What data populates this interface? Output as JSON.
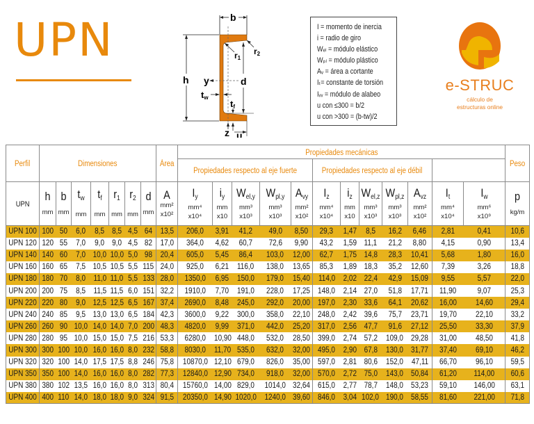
{
  "header": {
    "title": "UPN"
  },
  "diagram": {
    "labels": {
      "b": "b",
      "h": "h",
      "r1": "r",
      "r1_sub": "1",
      "r2": "r",
      "r2_sub": "2",
      "y": "y",
      "d": "d",
      "tw": "t",
      "tw_sub": "w",
      "tf": "t",
      "tf_sub": "f",
      "z": "z",
      "u": "u"
    },
    "colors": {
      "section": "#e07a10",
      "lines": "#222222"
    }
  },
  "legend": {
    "lines": [
      "I = momento de inercia",
      "i = radio de giro",
      "Wₑₗ = módulo elástico",
      "Wₚₗ = módulo plástico",
      "Aᵥ = área a cortante",
      "Iₜ= constante de torsión",
      "Iᵥᵥ = módulo de alabeo",
      "u con ≤300 = b/2",
      "u con >300 = (b-tw)/2"
    ]
  },
  "logo": {
    "name": "e-STRUC",
    "subtitle_line1": "cálculo de",
    "subtitle_line2": "estructuras online",
    "colors": {
      "dark": "#e8740f",
      "light": "#f0b400"
    }
  },
  "table": {
    "groups": {
      "perfil": "Perfil",
      "dimensiones": "Dimensiones",
      "area": "Área",
      "propiedades": "Propiedades mecánicas",
      "eje_fuerte": "Propiedades respecto al eje fuerte",
      "eje_debil": "Propiedades respecto al eje débil",
      "peso": "Peso"
    },
    "series_label": "UPN",
    "columns": [
      {
        "sym": "h",
        "sub": "",
        "unit": "mm",
        "scale": ""
      },
      {
        "sym": "b",
        "sub": "",
        "unit": "mm",
        "scale": ""
      },
      {
        "sym": "t",
        "sub": "w",
        "unit": "mm",
        "scale": ""
      },
      {
        "sym": "t",
        "sub": "f",
        "unit": "mm",
        "scale": ""
      },
      {
        "sym": "r",
        "sub": "1",
        "unit": "mm",
        "scale": ""
      },
      {
        "sym": "r",
        "sub": "2",
        "unit": "mm",
        "scale": ""
      },
      {
        "sym": "d",
        "sub": "",
        "unit": "mm",
        "scale": ""
      },
      {
        "sym": "A",
        "sub": "",
        "unit": "mm²",
        "scale": "x10²"
      },
      {
        "sym": "I",
        "sub": "y",
        "unit": "mm⁴",
        "scale": "x10⁴"
      },
      {
        "sym": "i",
        "sub": "y",
        "unit": "mm",
        "scale": "x10"
      },
      {
        "sym": "W",
        "sub": "el,y",
        "unit": "mm³",
        "scale": "x10³"
      },
      {
        "sym": "W",
        "sub": "pl,y",
        "unit": "mm³",
        "scale": "x10³"
      },
      {
        "sym": "A",
        "sub": "vy",
        "unit": "mm²",
        "scale": "x10²"
      },
      {
        "sym": "I",
        "sub": "z",
        "unit": "mm⁴",
        "scale": "x10⁴"
      },
      {
        "sym": "i",
        "sub": "z",
        "unit": "mm",
        "scale": "x10"
      },
      {
        "sym": "W",
        "sub": "el,z",
        "unit": "mm³",
        "scale": "x10³"
      },
      {
        "sym": "W",
        "sub": "pl,z",
        "unit": "mm³",
        "scale": "x10³"
      },
      {
        "sym": "A",
        "sub": "vz",
        "unit": "mm²",
        "scale": "x10²"
      },
      {
        "sym": "I",
        "sub": "t",
        "unit": "mm⁴",
        "scale": "x10⁴"
      },
      {
        "sym": "I",
        "sub": "w",
        "unit": "mm⁶",
        "scale": "x10⁹"
      },
      {
        "sym": "p",
        "sub": "",
        "unit": "kg/m",
        "scale": ""
      }
    ],
    "rows": [
      [
        "UPN 100",
        "100",
        "50",
        "6,0",
        "8,5",
        "8,5",
        "4,5",
        "64",
        "13,5",
        "206,0",
        "3,91",
        "41,2",
        "49,0",
        "8,50",
        "29,3",
        "1,47",
        "8,5",
        "16,2",
        "6,46",
        "2,81",
        "0,41",
        "10,6"
      ],
      [
        "UPN 120",
        "120",
        "55",
        "7,0",
        "9,0",
        "9,0",
        "4,5",
        "82",
        "17,0",
        "364,0",
        "4,62",
        "60,7",
        "72,6",
        "9,90",
        "43,2",
        "1,59",
        "11,1",
        "21,2",
        "8,80",
        "4,15",
        "0,90",
        "13,4"
      ],
      [
        "UPN 140",
        "140",
        "60",
        "7,0",
        "10,0",
        "10,0",
        "5,0",
        "98",
        "20,4",
        "605,0",
        "5,45",
        "86,4",
        "103,0",
        "12,00",
        "62,7",
        "1,75",
        "14,8",
        "28,3",
        "10,41",
        "5,68",
        "1,80",
        "16,0"
      ],
      [
        "UPN 160",
        "160",
        "65",
        "7,5",
        "10,5",
        "10,5",
        "5,5",
        "115",
        "24,0",
        "925,0",
        "6,21",
        "116,0",
        "138,0",
        "13,65",
        "85,3",
        "1,89",
        "18,3",
        "35,2",
        "12,60",
        "7,39",
        "3,26",
        "18,8"
      ],
      [
        "UPN 180",
        "180",
        "70",
        "8,0",
        "11,0",
        "11,0",
        "5,5",
        "133",
        "28,0",
        "1350,0",
        "6,95",
        "150,0",
        "179,0",
        "15,40",
        "114,0",
        "2,02",
        "22,4",
        "42,9",
        "15,09",
        "9,55",
        "5,57",
        "22,0"
      ],
      [
        "UPN 200",
        "200",
        "75",
        "8,5",
        "11,5",
        "11,5",
        "6,0",
        "151",
        "32,2",
        "1910,0",
        "7,70",
        "191,0",
        "228,0",
        "17,25",
        "148,0",
        "2,14",
        "27,0",
        "51,8",
        "17,71",
        "11,90",
        "9,07",
        "25,3"
      ],
      [
        "UPN 220",
        "220",
        "80",
        "9,0",
        "12,5",
        "12,5",
        "6,5",
        "167",
        "37,4",
        "2690,0",
        "8,48",
        "245,0",
        "292,0",
        "20,00",
        "197,0",
        "2,30",
        "33,6",
        "64,1",
        "20,62",
        "16,00",
        "14,60",
        "29,4"
      ],
      [
        "UPN 240",
        "240",
        "85",
        "9,5",
        "13,0",
        "13,0",
        "6,5",
        "184",
        "42,3",
        "3600,0",
        "9,22",
        "300,0",
        "358,0",
        "22,10",
        "248,0",
        "2,42",
        "39,6",
        "75,7",
        "23,71",
        "19,70",
        "22,10",
        "33,2"
      ],
      [
        "UPN 260",
        "260",
        "90",
        "10,0",
        "14,0",
        "14,0",
        "7,0",
        "200",
        "48,3",
        "4820,0",
        "9,99",
        "371,0",
        "442,0",
        "25,20",
        "317,0",
        "2,56",
        "47,7",
        "91,6",
        "27,12",
        "25,50",
        "33,30",
        "37,9"
      ],
      [
        "UPN 280",
        "280",
        "95",
        "10,0",
        "15,0",
        "15,0",
        "7,5",
        "216",
        "53,3",
        "6280,0",
        "10,90",
        "448,0",
        "532,0",
        "28,50",
        "399,0",
        "2,74",
        "57,2",
        "109,0",
        "29,28",
        "31,00",
        "48,50",
        "41,8"
      ],
      [
        "UPN 300",
        "300",
        "100",
        "10,0",
        "16,0",
        "16,0",
        "8,0",
        "232",
        "58,8",
        "8030,0",
        "11,70",
        "535,0",
        "632,0",
        "32,00",
        "495,0",
        "2,90",
        "67,8",
        "130,0",
        "31,77",
        "37,40",
        "69,10",
        "46,2"
      ],
      [
        "UPN 320",
        "320",
        "100",
        "14,0",
        "17,5",
        "17,5",
        "8,8",
        "246",
        "75,8",
        "10870,0",
        "12,10",
        "679,0",
        "826,0",
        "35,00",
        "597,0",
        "2,81",
        "80,6",
        "152,0",
        "47,11",
        "66,70",
        "96,10",
        "59,5"
      ],
      [
        "UPN 350",
        "350",
        "100",
        "14,0",
        "16,0",
        "16,0",
        "8,0",
        "282",
        "77,3",
        "12840,0",
        "12,90",
        "734,0",
        "918,0",
        "32,00",
        "570,0",
        "2,72",
        "75,0",
        "143,0",
        "50,84",
        "61,20",
        "114,00",
        "60,6"
      ],
      [
        "UPN 380",
        "380",
        "102",
        "13,5",
        "16,0",
        "16,0",
        "8,0",
        "313",
        "80,4",
        "15760,0",
        "14,00",
        "829,0",
        "1014,0",
        "32,64",
        "615,0",
        "2,77",
        "78,7",
        "148,0",
        "53,23",
        "59,10",
        "146,00",
        "63,1"
      ],
      [
        "UPN 400",
        "400",
        "110",
        "14,0",
        "18,0",
        "18,0",
        "9,0",
        "324",
        "91,5",
        "20350,0",
        "14,90",
        "1020,0",
        "1240,0",
        "39,60",
        "846,0",
        "3,04",
        "102,0",
        "190,0",
        "58,55",
        "81,60",
        "221,00",
        "71,8"
      ]
    ],
    "colors": {
      "highlight_row": "#e7b21c",
      "header_text": "#e8890c",
      "border": "#8a8a8a"
    }
  }
}
